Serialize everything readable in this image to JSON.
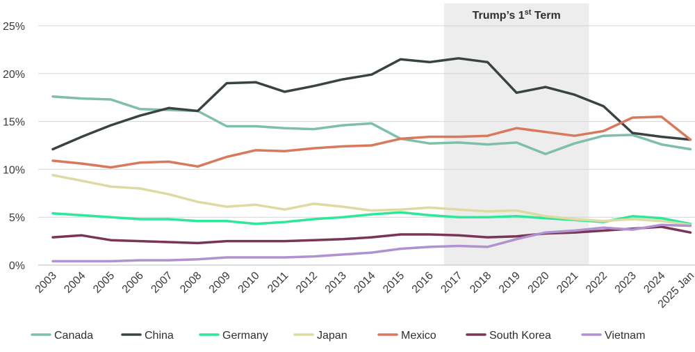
{
  "chart_data": {
    "type": "line",
    "title": "",
    "xlabel": "",
    "ylabel": "",
    "ylim": [
      0,
      25
    ],
    "y_ticks": [
      0,
      5,
      10,
      15,
      20,
      25
    ],
    "y_tick_labels": [
      "0%",
      "5%",
      "10%",
      "15%",
      "20%",
      "25%"
    ],
    "grid": true,
    "legend_position": "bottom",
    "categories": [
      "2003",
      "2004",
      "2005",
      "2006",
      "2007",
      "2008",
      "2009",
      "2010",
      "2011",
      "2012",
      "2013",
      "2014",
      "2015",
      "2016",
      "2017",
      "2018",
      "2019",
      "2020",
      "2021",
      "2022",
      "2023",
      "2024",
      "2025 Jan"
    ],
    "highlight_band": {
      "label_main": "Trump’s 1",
      "label_sup": "st",
      "label_end": " Term",
      "from_year": 2016.5,
      "to_year": 2021.5,
      "color": "#ededed"
    },
    "series": [
      {
        "name": "Canada",
        "color": "#7fbfa9",
        "values": [
          17.6,
          17.4,
          17.3,
          16.3,
          16.2,
          16.1,
          14.5,
          14.5,
          14.3,
          14.2,
          14.6,
          14.8,
          13.2,
          12.7,
          12.8,
          12.6,
          12.8,
          11.6,
          12.7,
          13.5,
          13.6,
          12.6,
          12.1
        ]
      },
      {
        "name": "China",
        "color": "#3a4244",
        "values": [
          12.1,
          13.4,
          14.6,
          15.6,
          16.4,
          16.1,
          19.0,
          19.1,
          18.1,
          18.7,
          19.4,
          19.9,
          21.5,
          21.2,
          21.6,
          21.2,
          18.0,
          18.6,
          17.8,
          16.6,
          13.8,
          13.4,
          13.1
        ]
      },
      {
        "name": "Germany",
        "color": "#2de89a",
        "values": [
          5.4,
          5.2,
          5.0,
          4.8,
          4.8,
          4.6,
          4.6,
          4.3,
          4.5,
          4.8,
          5.0,
          5.3,
          5.5,
          5.2,
          5.0,
          5.0,
          5.1,
          4.9,
          4.7,
          4.5,
          5.1,
          4.9,
          4.3
        ]
      },
      {
        "name": "Japan",
        "color": "#dcdba2",
        "values": [
          9.4,
          8.8,
          8.2,
          8.0,
          7.4,
          6.6,
          6.1,
          6.3,
          5.8,
          6.4,
          6.1,
          5.7,
          5.8,
          6.0,
          5.8,
          5.6,
          5.7,
          5.1,
          4.8,
          4.6,
          4.8,
          4.6,
          4.2
        ]
      },
      {
        "name": "Mexico",
        "color": "#d9785a",
        "values": [
          10.9,
          10.6,
          10.2,
          10.7,
          10.8,
          10.3,
          11.3,
          12.0,
          11.9,
          12.2,
          12.4,
          12.5,
          13.2,
          13.4,
          13.4,
          13.5,
          14.3,
          13.9,
          13.5,
          14.0,
          15.4,
          15.5,
          13.1
        ]
      },
      {
        "name": "South Korea",
        "color": "#7a3555",
        "values": [
          2.9,
          3.1,
          2.6,
          2.5,
          2.4,
          2.3,
          2.5,
          2.5,
          2.5,
          2.6,
          2.7,
          2.9,
          3.2,
          3.2,
          3.1,
          2.9,
          3.0,
          3.3,
          3.4,
          3.6,
          3.8,
          4.0,
          3.4
        ]
      },
      {
        "name": "Vietnam",
        "color": "#b092d0",
        "values": [
          0.4,
          0.4,
          0.4,
          0.5,
          0.5,
          0.6,
          0.8,
          0.8,
          0.8,
          0.9,
          1.1,
          1.3,
          1.7,
          1.9,
          2.0,
          1.9,
          2.7,
          3.4,
          3.6,
          3.9,
          3.7,
          4.2,
          4.1
        ]
      }
    ]
  }
}
